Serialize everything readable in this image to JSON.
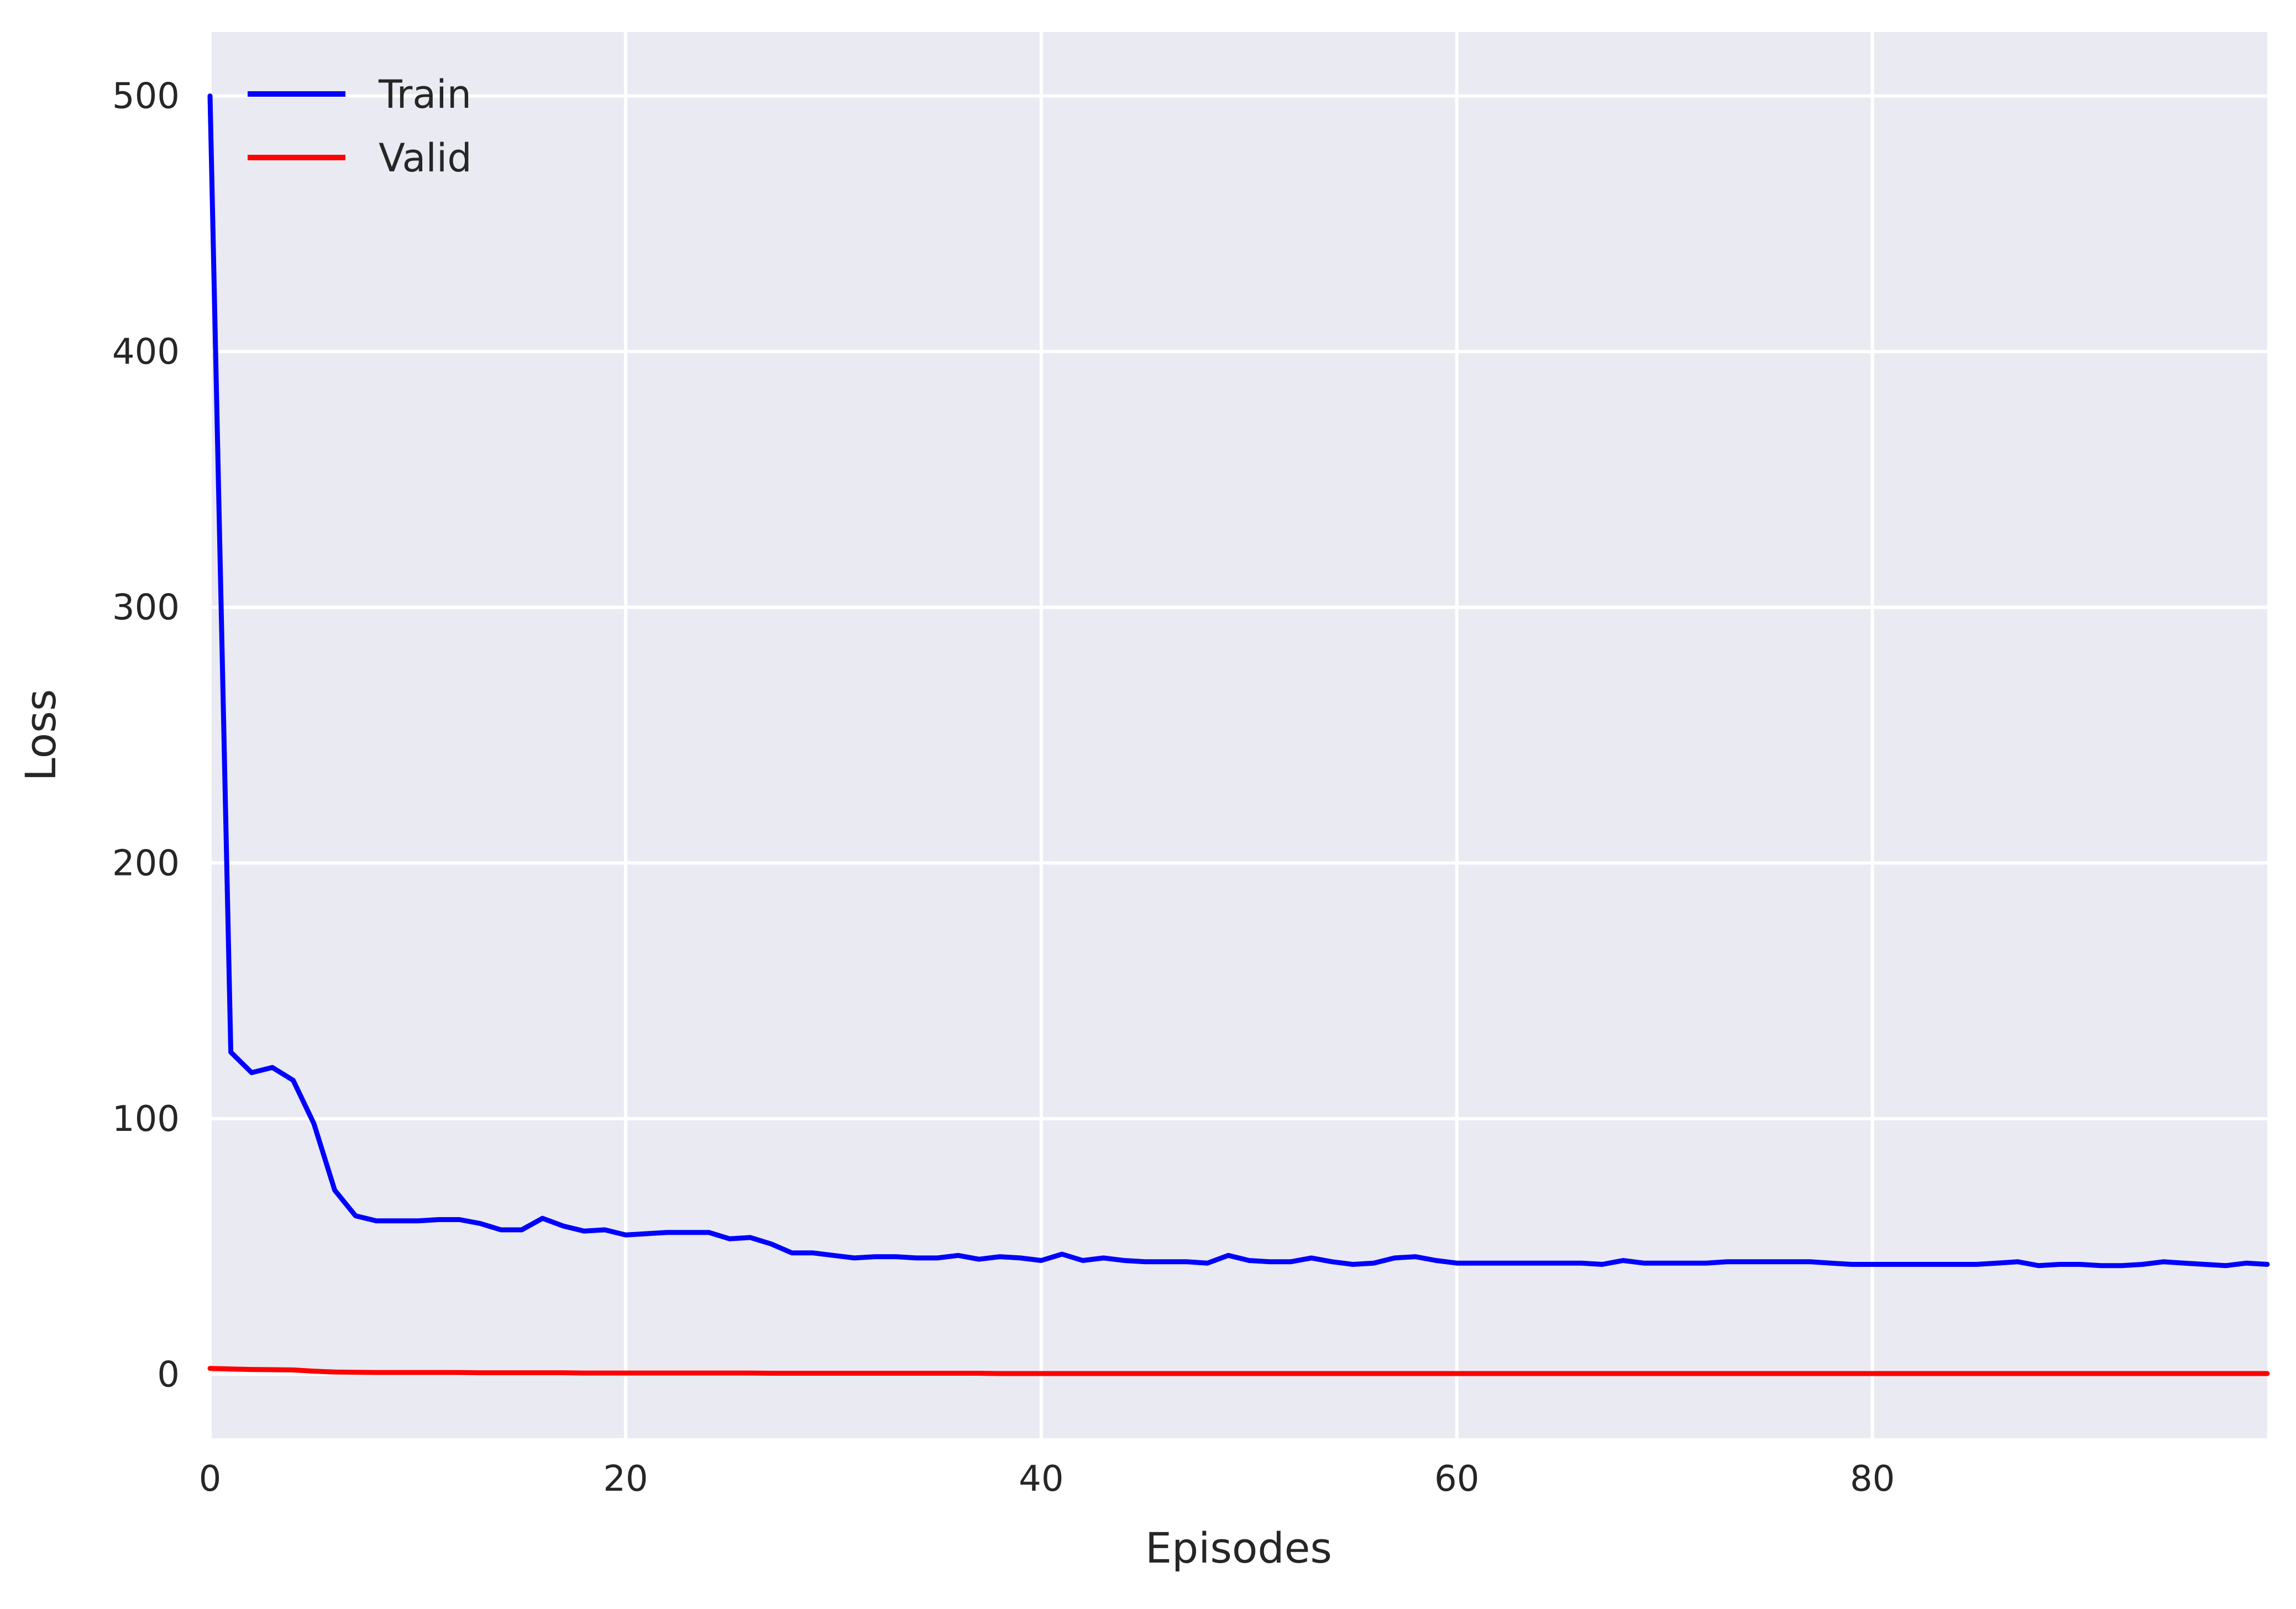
{
  "chart_data": {
    "type": "line",
    "xlabel": "Episodes",
    "ylabel": "Loss",
    "xlim": [
      0,
      99
    ],
    "ylim": [
      -25,
      525
    ],
    "xticks": [
      0,
      20,
      40,
      60,
      80
    ],
    "yticks": [
      0,
      100,
      200,
      300,
      400,
      500
    ],
    "grid": true,
    "legend_position": "upper-left",
    "background_color": "#eaeaf2",
    "x": [
      0,
      1,
      2,
      3,
      4,
      5,
      6,
      7,
      8,
      9,
      10,
      11,
      12,
      13,
      14,
      15,
      16,
      17,
      18,
      19,
      20,
      21,
      22,
      23,
      24,
      25,
      26,
      27,
      28,
      29,
      30,
      31,
      32,
      33,
      34,
      35,
      36,
      37,
      38,
      39,
      40,
      41,
      42,
      43,
      44,
      45,
      46,
      47,
      48,
      49,
      50,
      51,
      52,
      53,
      54,
      55,
      56,
      57,
      58,
      59,
      60,
      61,
      62,
      63,
      64,
      65,
      66,
      67,
      68,
      69,
      70,
      71,
      72,
      73,
      74,
      75,
      76,
      77,
      78,
      79,
      80,
      81,
      82,
      83,
      84,
      85,
      86,
      87,
      88,
      89,
      90,
      91,
      92,
      93,
      94,
      95,
      96,
      97,
      98,
      99
    ],
    "series": [
      {
        "name": "Train",
        "color": "#0000ff",
        "values": [
          500,
          126,
          118,
          120,
          115,
          98,
          72,
          62,
          60,
          60,
          60,
          60.5,
          60.5,
          59,
          56.5,
          56.5,
          61,
          58,
          56,
          56.5,
          54.5,
          55,
          55.5,
          55.5,
          55.5,
          53,
          53.5,
          51,
          47.5,
          47.5,
          46.5,
          45.5,
          46,
          46,
          45.5,
          45.5,
          46.5,
          45,
          46,
          45.5,
          44.5,
          47,
          44.5,
          45.5,
          44.5,
          44,
          44,
          44,
          43.5,
          46.5,
          44.5,
          44,
          44,
          45.5,
          44,
          43,
          43.5,
          45.5,
          46,
          44.5,
          43.5,
          43.5,
          43.5,
          43.5,
          43.5,
          43.5,
          43.5,
          43,
          44.5,
          43.5,
          43.5,
          43.5,
          43.5,
          44,
          44,
          44,
          44,
          44,
          43.5,
          43,
          43,
          43,
          43,
          43,
          43,
          43,
          43.5,
          44,
          42.5,
          43,
          43,
          42.5,
          42.5,
          43,
          44,
          43.5,
          43,
          42.5,
          43.5,
          43
        ]
      },
      {
        "name": "Valid",
        "color": "#ff0000",
        "values": [
          2.3,
          2.1,
          1.9,
          1.8,
          1.7,
          1.2,
          0.9,
          0.8,
          0.7,
          0.7,
          0.7,
          0.7,
          0.7,
          0.6,
          0.6,
          0.6,
          0.6,
          0.6,
          0.5,
          0.5,
          0.5,
          0.5,
          0.5,
          0.5,
          0.5,
          0.5,
          0.5,
          0.4,
          0.4,
          0.4,
          0.4,
          0.4,
          0.4,
          0.4,
          0.4,
          0.4,
          0.4,
          0.4,
          0.3,
          0.3,
          0.3,
          0.3,
          0.3,
          0.3,
          0.3,
          0.3,
          0.3,
          0.3,
          0.3,
          0.3,
          0.3,
          0.3,
          0.3,
          0.3,
          0.3,
          0.3,
          0.3,
          0.3,
          0.3,
          0.3,
          0.3,
          0.3,
          0.3,
          0.3,
          0.3,
          0.3,
          0.3,
          0.3,
          0.3,
          0.3,
          0.3,
          0.3,
          0.3,
          0.3,
          0.3,
          0.3,
          0.3,
          0.3,
          0.3,
          0.3,
          0.3,
          0.3,
          0.3,
          0.3,
          0.3,
          0.3,
          0.3,
          0.3,
          0.3,
          0.3,
          0.3,
          0.3,
          0.3,
          0.3,
          0.3,
          0.3,
          0.3,
          0.3,
          0.3,
          0.3
        ]
      }
    ]
  }
}
